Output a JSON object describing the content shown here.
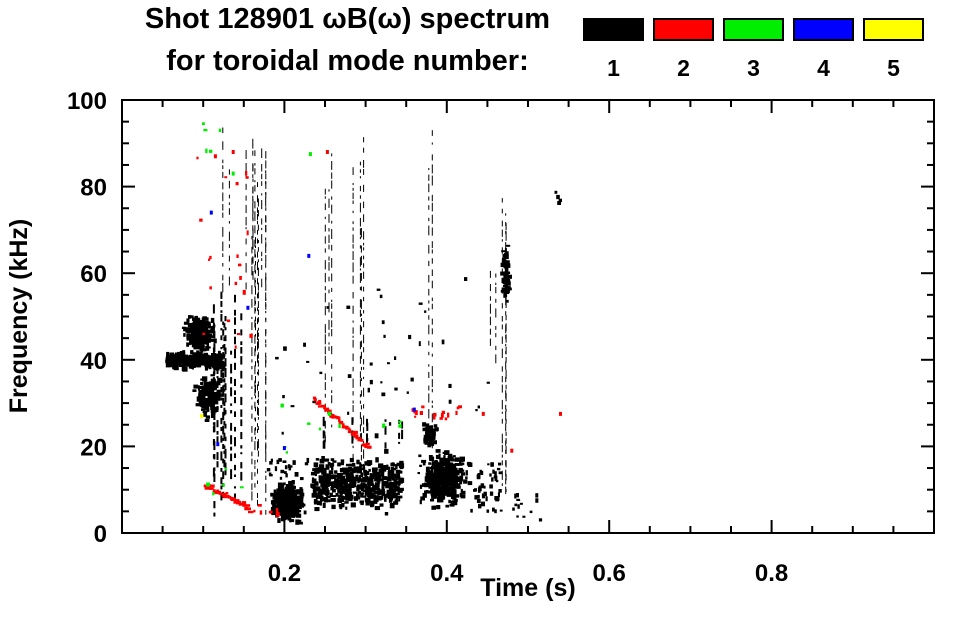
{
  "title": {
    "line1": "Shot 128901 ωB(ω) spectrum",
    "line2": "for toroidal mode number:"
  },
  "legend": {
    "items": [
      {
        "label": "1",
        "color": "#000000"
      },
      {
        "label": "2",
        "color": "#ff0000"
      },
      {
        "label": "3",
        "color": "#00ee00"
      },
      {
        "label": "4",
        "color": "#0000ff"
      },
      {
        "label": "5",
        "color": "#ffff00"
      }
    ]
  },
  "chart_data": {
    "type": "scatter",
    "title": "Shot 128901 ωB(ω) spectrum for toroidal mode number: 1 2 3 4 5",
    "xlabel": "Time (s)",
    "ylabel": "Frequency (kHz)",
    "xlim": [
      0,
      1.0
    ],
    "ylim": [
      0,
      100
    ],
    "x_major_ticks": [
      0.2,
      0.4,
      0.6,
      0.8
    ],
    "x_tick_labels": [
      "0.2",
      "0.4",
      "0.6",
      "0.8"
    ],
    "x_minor_step": 0.05,
    "y_major_ticks": [
      0,
      20,
      40,
      60,
      80,
      100
    ],
    "y_tick_labels": [
      "0",
      "20",
      "40",
      "60",
      "80",
      "100"
    ],
    "y_minor_step": 5,
    "grid": false,
    "legend_position": "top-right",
    "series_note": "scatter clusters of toroidal mode activity; t in seconds, f in kHz",
    "clusters": [
      {
        "mode": 1,
        "shape": "hband",
        "t": [
          0.056,
          0.125
        ],
        "f": [
          37.5,
          42
        ],
        "n": 300
      },
      {
        "mode": 1,
        "shape": "blob",
        "t": [
          0.052,
          0.075
        ],
        "f": [
          38,
          41
        ],
        "n": 70
      },
      {
        "mode": 1,
        "shape": "blob",
        "t": [
          0.075,
          0.118
        ],
        "f": [
          41,
          51
        ],
        "n": 240
      },
      {
        "mode": 1,
        "shape": "blob",
        "t": [
          0.085,
          0.128
        ],
        "f": [
          26,
          38
        ],
        "n": 150
      },
      {
        "mode": 1,
        "shape": "vstreaks",
        "t": [
          0.11,
          0.148
        ],
        "f": [
          4,
          56
        ],
        "k": 10,
        "w": 2
      },
      {
        "mode": 1,
        "shape": "vstreaks",
        "t": [
          0.148,
          0.178
        ],
        "f": [
          2,
          92
        ],
        "k": 7,
        "w": 1
      },
      {
        "mode": 1,
        "shape": "vstreaks",
        "t": [
          0.122,
          0.175
        ],
        "f": [
          56,
          95
        ],
        "k": 6,
        "w": 1
      },
      {
        "mode": 1,
        "shape": "blob",
        "t": [
          0.18,
          0.228
        ],
        "f": [
          1.5,
          13
        ],
        "n": 360
      },
      {
        "mode": 1,
        "shape": "specks",
        "t": [
          0.18,
          0.23
        ],
        "f": [
          13,
          17
        ],
        "n": 20
      },
      {
        "mode": 1,
        "shape": "hband",
        "t": [
          0.235,
          0.345
        ],
        "f": [
          4,
          19
        ],
        "n": 480
      },
      {
        "mode": 1,
        "shape": "vstreaks",
        "t": [
          0.24,
          0.345
        ],
        "f": [
          19,
          27
        ],
        "k": 8,
        "w": 2
      },
      {
        "mode": 1,
        "shape": "vstreaks",
        "t": [
          0.25,
          0.262
        ],
        "f": [
          22,
          98
        ],
        "k": 3,
        "w": 1
      },
      {
        "mode": 1,
        "shape": "vstreaks",
        "t": [
          0.283,
          0.3
        ],
        "f": [
          8,
          96
        ],
        "k": 4,
        "w": 1
      },
      {
        "mode": 1,
        "shape": "specks",
        "t": [
          0.19,
          0.36
        ],
        "f": [
          22,
          60
        ],
        "n": 22
      },
      {
        "mode": 1,
        "shape": "blob",
        "t": [
          0.362,
          0.432
        ],
        "f": [
          5,
          20
        ],
        "n": 420
      },
      {
        "mode": 1,
        "shape": "blob",
        "t": [
          0.368,
          0.392
        ],
        "f": [
          19,
          26
        ],
        "n": 50
      },
      {
        "mode": 1,
        "shape": "specks",
        "t": [
          0.43,
          0.468
        ],
        "f": [
          5,
          16
        ],
        "n": 45
      },
      {
        "mode": 1,
        "shape": "vstreaks",
        "t": [
          0.375,
          0.383
        ],
        "f": [
          8,
          98
        ],
        "k": 2,
        "w": 1
      },
      {
        "mode": 1,
        "shape": "specks",
        "t": [
          0.3,
          0.46
        ],
        "f": [
          28,
          62
        ],
        "n": 18
      },
      {
        "mode": 1,
        "shape": "vstreaks",
        "t": [
          0.452,
          0.462
        ],
        "f": [
          37,
          66
        ],
        "k": 2,
        "w": 1
      },
      {
        "mode": 1,
        "shape": "vstreaks",
        "t": [
          0.467,
          0.478
        ],
        "f": [
          2,
          92
        ],
        "k": 3,
        "w": 1
      },
      {
        "mode": 1,
        "shape": "blob",
        "t": [
          0.468,
          0.478
        ],
        "f": [
          53,
          67
        ],
        "n": 60
      },
      {
        "mode": 1,
        "shape": "specks",
        "t": [
          0.48,
          0.52
        ],
        "f": [
          3,
          9
        ],
        "n": 14
      },
      {
        "mode": 1,
        "shape": "specks",
        "t": [
          0.534,
          0.541
        ],
        "f": [
          76,
          80
        ],
        "n": 4
      },
      {
        "mode": 2,
        "shape": "chirp",
        "p0": [
          0.103,
          11
        ],
        "p1": [
          0.158,
          5.5
        ],
        "n": 34
      },
      {
        "mode": 2,
        "shape": "specks",
        "t": [
          0.09,
          0.16
        ],
        "f": [
          40,
          88
        ],
        "n": 20
      },
      {
        "mode": 2,
        "shape": "chirp",
        "p0": [
          0.237,
          31
        ],
        "p1": [
          0.305,
          19.5
        ],
        "n": 44
      },
      {
        "mode": 2,
        "shape": "specks",
        "t": [
          0.358,
          0.42
        ],
        "f": [
          26,
          30
        ],
        "n": 16
      },
      {
        "mode": 2,
        "shape": "specks",
        "t": [
          0.16,
          0.2
        ],
        "f": [
          4,
          7
        ],
        "n": 6
      },
      {
        "mode": 2,
        "shape": "point",
        "t": 0.445,
        "f": 27.5
      },
      {
        "mode": 2,
        "shape": "point",
        "t": 0.54,
        "f": 27.5
      },
      {
        "mode": 2,
        "shape": "point",
        "t": 0.48,
        "f": 19
      },
      {
        "mode": 2,
        "shape": "point",
        "t": 0.253,
        "f": 88
      },
      {
        "mode": 2,
        "shape": "point",
        "t": 0.115,
        "f": 87
      },
      {
        "mode": 2,
        "shape": "point",
        "t": 0.137,
        "f": 88
      },
      {
        "mode": 3,
        "shape": "specks",
        "t": [
          0.1,
          0.122
        ],
        "f": [
          88,
          95
        ],
        "n": 5
      },
      {
        "mode": 3,
        "shape": "specks",
        "t": [
          0.1,
          0.15
        ],
        "f": [
          9,
          15
        ],
        "n": 5
      },
      {
        "mode": 3,
        "shape": "specks",
        "t": [
          0.185,
          0.35
        ],
        "f": [
          18,
          30
        ],
        "n": 10
      },
      {
        "mode": 3,
        "shape": "point",
        "t": 0.232,
        "f": 87.5
      },
      {
        "mode": 3,
        "shape": "point",
        "t": 0.137,
        "f": 83
      },
      {
        "mode": 4,
        "shape": "point",
        "t": 0.11,
        "f": 74
      },
      {
        "mode": 4,
        "shape": "point",
        "t": 0.118,
        "f": 20.5
      },
      {
        "mode": 4,
        "shape": "point",
        "t": 0.155,
        "f": 52
      },
      {
        "mode": 4,
        "shape": "point",
        "t": 0.2,
        "f": 19.6
      },
      {
        "mode": 4,
        "shape": "point",
        "t": 0.23,
        "f": 64
      },
      {
        "mode": 4,
        "shape": "point",
        "t": 0.36,
        "f": 28.5
      },
      {
        "mode": 5,
        "shape": "point",
        "t": 0.098,
        "f": 27
      }
    ]
  }
}
